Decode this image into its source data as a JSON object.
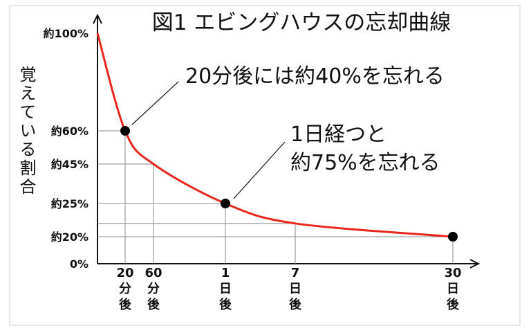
{
  "chart_data": {
    "type": "line",
    "title": "図1 エビングハウスの忘却曲線",
    "y_label": "覚えている割合",
    "categories": [
      null,
      "20分後",
      "60分後",
      "1日後",
      "7日後",
      "30日後"
    ],
    "series": [
      {
        "name": "curve",
        "color": "#e8261c",
        "values": [
          100,
          60,
          45,
          25,
          22,
          20
        ]
      },
      {
        "name": "points",
        "color": "#000000",
        "values": [
          null,
          60,
          null,
          25,
          null,
          20
        ]
      }
    ],
    "ylim": [
      0,
      100
    ],
    "yticks": [
      {
        "value": 0,
        "label": "0%"
      },
      {
        "value": 20,
        "label": "約20%"
      },
      {
        "value": 25,
        "label": "約25%"
      },
      {
        "value": 45,
        "label": "約45%"
      },
      {
        "value": 60,
        "label": "約60%"
      },
      {
        "value": 100,
        "label": "約100%"
      }
    ],
    "annotations": [
      "20分後には約40%を忘れる",
      "1日経つと",
      "約75%を忘れる"
    ]
  }
}
